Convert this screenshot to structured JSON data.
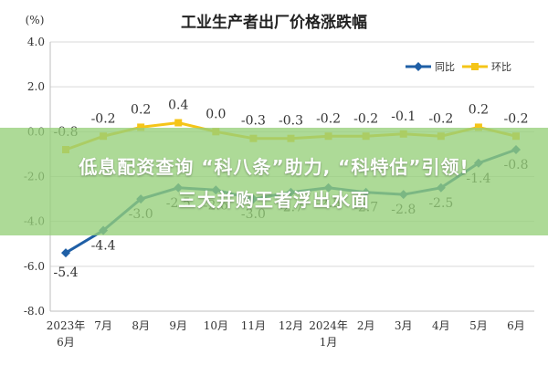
{
  "chart_data": {
    "type": "line",
    "title": "工业生产者出厂价格涨跌幅",
    "y_unit": "(%)",
    "categories": [
      [
        "2023年",
        "6月"
      ],
      [
        "7月"
      ],
      [
        "8月"
      ],
      [
        "9月"
      ],
      [
        "10月"
      ],
      [
        "11月"
      ],
      [
        "12月"
      ],
      [
        "2024年",
        "1月"
      ],
      [
        "2月"
      ],
      [
        "3月"
      ],
      [
        "4月"
      ],
      [
        "5月"
      ],
      [
        "6月"
      ]
    ],
    "ylim": [
      -8,
      4
    ],
    "yticks": [
      "4.0",
      "2.0",
      "0.0",
      "-2.0",
      "-4.0",
      "-6.0",
      "-8.0"
    ],
    "grid": true,
    "legend_position": "top-right",
    "series": [
      {
        "name": "同比",
        "color": "#1f5fa6",
        "values": [
          -5.4,
          -4.4,
          -3.0,
          -2.5,
          -2.6,
          -3.0,
          -2.7,
          -2.5,
          -2.7,
          -2.8,
          -2.5,
          -1.4,
          -0.8
        ],
        "labels": [
          "-5.4",
          "-4.4",
          "-3.0",
          "-2.5",
          "-2.6",
          "-3.0",
          "-2.7",
          "-2.5",
          "-2.7",
          "-2.8",
          "-2.5",
          "-1.4",
          "-0.8"
        ]
      },
      {
        "name": "环比",
        "color": "#f5c518",
        "values": [
          -0.8,
          -0.2,
          0.2,
          0.4,
          0.0,
          -0.3,
          -0.3,
          -0.2,
          -0.2,
          -0.1,
          -0.2,
          0.2,
          -0.2
        ],
        "labels": [
          "-0.8",
          "-0.2",
          "0.2",
          "0.4",
          "0.0",
          "-0.3",
          "-0.3",
          "-0.2",
          "-0.2",
          "-0.1",
          "-0.2",
          "0.2",
          "-0.2"
        ]
      }
    ]
  },
  "overlay": {
    "headline_line1": "低息配资查询 “科八条”助力, “科特估”引领!",
    "headline_line2": "三大并购王者浮出水面"
  }
}
